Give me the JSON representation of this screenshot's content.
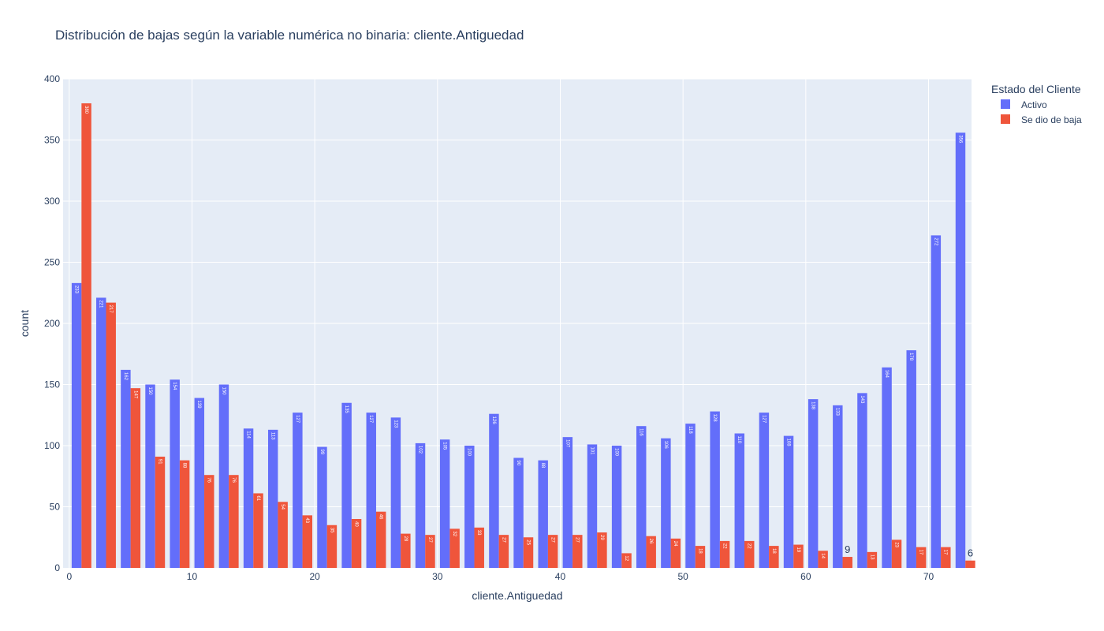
{
  "chart_data": {
    "type": "bar",
    "title": "Distribución de bajas según la variable numérica no binaria: cliente.Antiguedad",
    "xlabel": "cliente.Antiguedad",
    "ylabel": "count",
    "xlim": [
      -0.5,
      73.5
    ],
    "ylim": [
      0,
      400
    ],
    "xticks": [
      0,
      10,
      20,
      30,
      40,
      50,
      60,
      70
    ],
    "yticks": [
      0,
      50,
      100,
      150,
      200,
      250,
      300,
      350,
      400
    ],
    "bin_width": 2,
    "legend": {
      "title": "Estado del Cliente",
      "placement": "top-right"
    },
    "x": [
      0,
      2,
      4,
      6,
      8,
      10,
      12,
      14,
      16,
      18,
      20,
      22,
      24,
      26,
      28,
      30,
      32,
      34,
      36,
      38,
      40,
      42,
      44,
      46,
      48,
      50,
      52,
      54,
      56,
      58,
      60,
      62,
      64,
      66,
      68,
      70,
      72
    ],
    "series": [
      {
        "name": "Activo",
        "color": "#636efa",
        "values": [
          233,
          221,
          162,
          150,
          154,
          139,
          150,
          114,
          113,
          127,
          99,
          135,
          127,
          123,
          102,
          105,
          100,
          126,
          90,
          88,
          107,
          101,
          100,
          116,
          106,
          118,
          128,
          110,
          127,
          108,
          138,
          133,
          143,
          164,
          178,
          272,
          356
        ]
      },
      {
        "name": "Se dio de baja",
        "color": "#ef553b",
        "values": [
          380,
          217,
          147,
          91,
          88,
          76,
          76,
          61,
          54,
          43,
          35,
          40,
          46,
          28,
          27,
          32,
          33,
          27,
          25,
          27,
          27,
          29,
          12,
          26,
          24,
          18,
          22,
          22,
          18,
          19,
          14,
          9,
          13,
          23,
          17,
          17,
          6
        ]
      }
    ]
  }
}
